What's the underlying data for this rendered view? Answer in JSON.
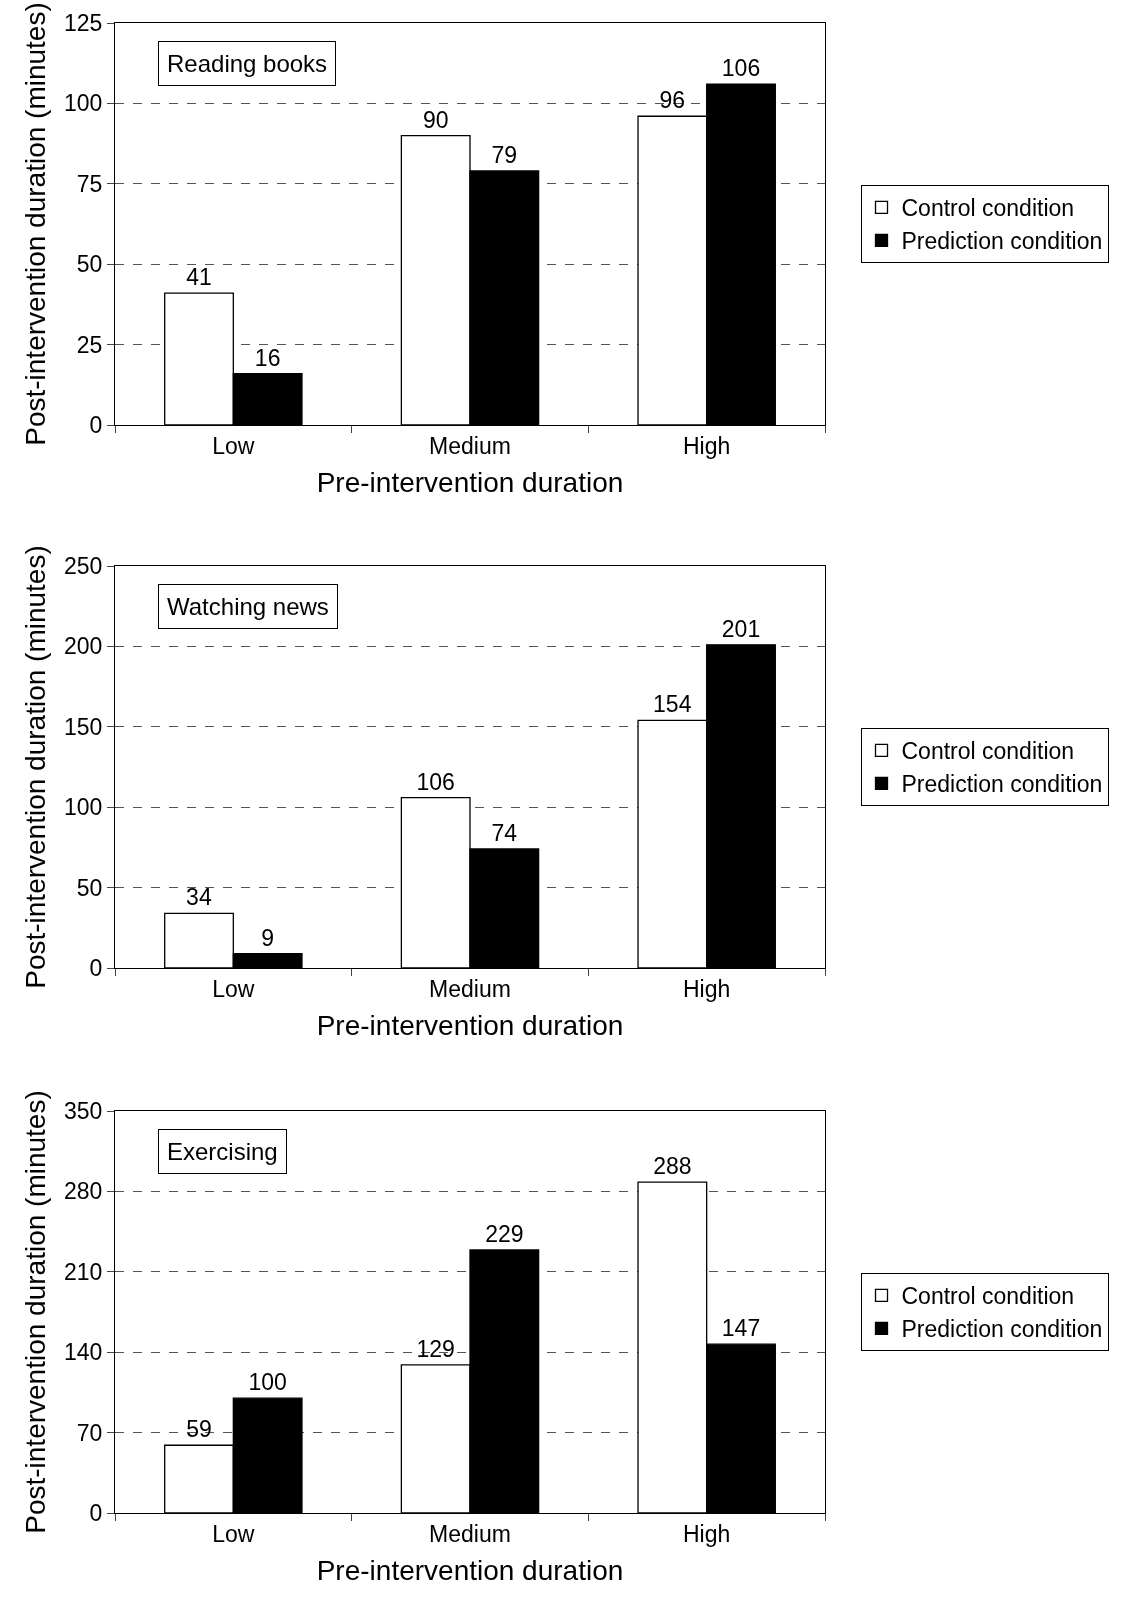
{
  "chart_data": [
    {
      "type": "bar",
      "title": "Reading books",
      "xlabel": "Pre-intervention duration",
      "ylabel": "Post-intervention duration (minutes)",
      "categories": [
        "Low",
        "Medium",
        "High"
      ],
      "series": [
        {
          "name": "Control condition",
          "color": "#ffffff",
          "values": [
            41,
            90,
            96
          ]
        },
        {
          "name": "Prediction condition",
          "color": "#000000",
          "values": [
            16,
            79,
            106
          ]
        }
      ],
      "ylim": [
        0,
        125
      ],
      "yticks": [
        0,
        25,
        50,
        75,
        100,
        125
      ],
      "grid": "y",
      "legend": "right",
      "data_labels": true
    },
    {
      "type": "bar",
      "title": "Watching news",
      "xlabel": "Pre-intervention duration",
      "ylabel": "Post-intervention duration (minutes)",
      "categories": [
        "Low",
        "Medium",
        "High"
      ],
      "series": [
        {
          "name": "Control condition",
          "color": "#ffffff",
          "values": [
            34,
            106,
            154
          ]
        },
        {
          "name": "Prediction condition",
          "color": "#000000",
          "values": [
            9,
            74,
            201
          ]
        }
      ],
      "ylim": [
        0,
        250
      ],
      "yticks": [
        0,
        50,
        100,
        150,
        200,
        250
      ],
      "grid": "y",
      "legend": "right",
      "data_labels": true
    },
    {
      "type": "bar",
      "title": "Exercising",
      "xlabel": "Pre-intervention duration",
      "ylabel": "Post-intervention duration (minutes)",
      "categories": [
        "Low",
        "Medium",
        "High"
      ],
      "series": [
        {
          "name": "Control condition",
          "color": "#ffffff",
          "values": [
            59,
            129,
            288
          ]
        },
        {
          "name": "Prediction condition",
          "color": "#000000",
          "values": [
            100,
            229,
            147
          ]
        }
      ],
      "ylim": [
        0,
        350
      ],
      "yticks": [
        0,
        70,
        140,
        210,
        280,
        350
      ],
      "grid": "y",
      "legend": "right",
      "data_labels": true
    }
  ]
}
